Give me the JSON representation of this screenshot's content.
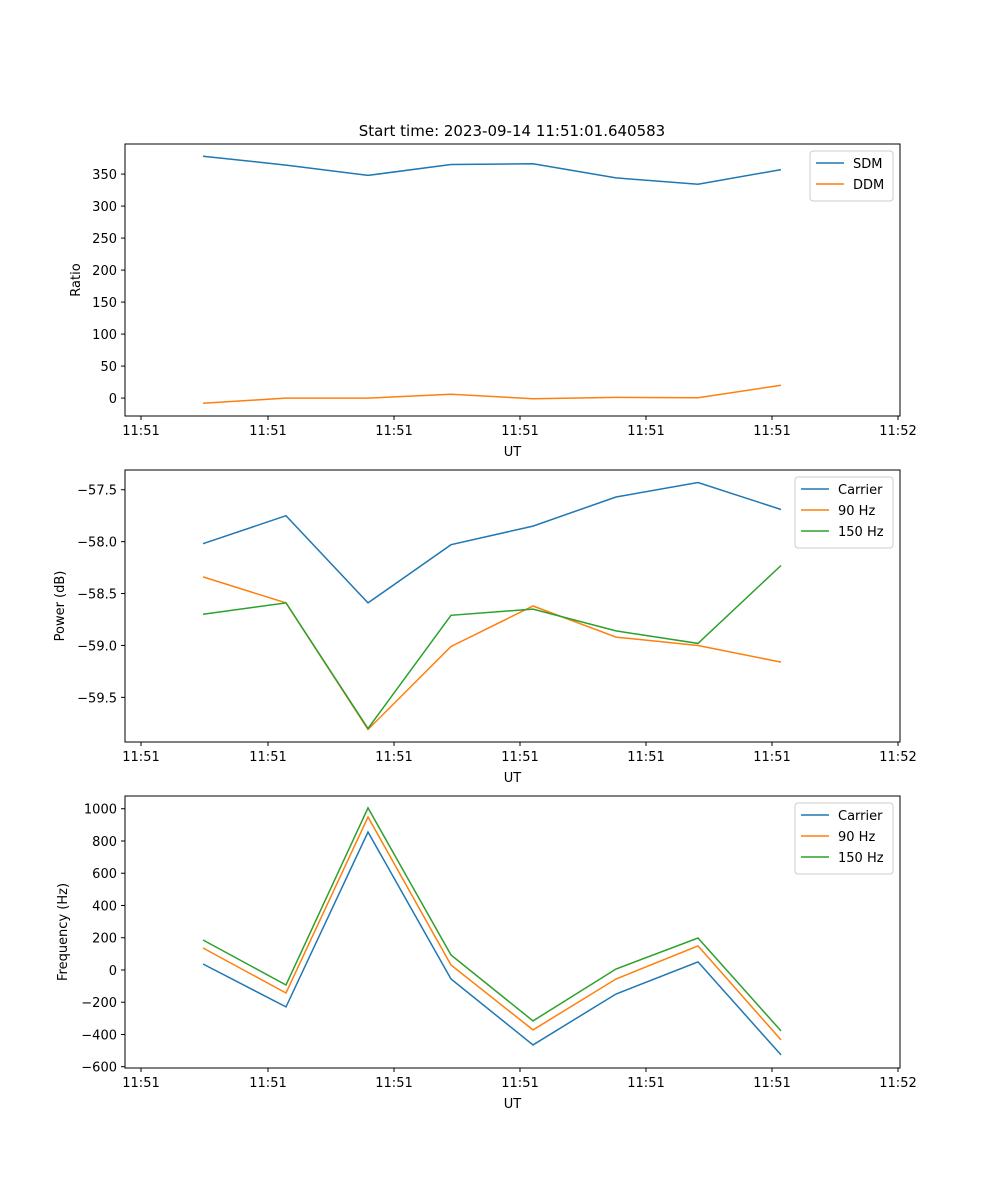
{
  "title": "Start time: 2023-09-14 11:51:01.640583",
  "colors": {
    "blue": "#1f77b4",
    "orange": "#ff7f0e",
    "green": "#2ca02c"
  },
  "chart_data": [
    {
      "type": "line",
      "xlabel": "UT",
      "ylabel": "Ratio",
      "xticks": [
        "11:51",
        "11:51",
        "11:51",
        "11:51",
        "11:51",
        "11:51",
        "11:52"
      ],
      "yticks": [
        0,
        50,
        100,
        150,
        200,
        250,
        300,
        350
      ],
      "ylim": [
        -28,
        397
      ],
      "legend": "top-right",
      "series": [
        {
          "name": "SDM",
          "color": "#1f77b4",
          "values": [
            378,
            364,
            348,
            365,
            366,
            344,
            334,
            357
          ]
        },
        {
          "name": "DDM",
          "color": "#ff7f0e",
          "values": [
            -8,
            0,
            0,
            6,
            -1,
            1,
            0.5,
            20
          ]
        }
      ]
    },
    {
      "type": "line",
      "xlabel": "UT",
      "ylabel": "Power (dB)",
      "xticks": [
        "11:51",
        "11:51",
        "11:51",
        "11:51",
        "11:51",
        "11:51",
        "11:52"
      ],
      "yticks": [
        -59.5,
        -59.0,
        -58.5,
        -58.0,
        -57.5
      ],
      "ytick_labels": [
        "−59.5",
        "−59.0",
        "−58.5",
        "−58.0",
        "−57.5"
      ],
      "ylim": [
        -59.93,
        -57.31
      ],
      "legend": "top-right",
      "series": [
        {
          "name": "Carrier",
          "color": "#1f77b4",
          "values": [
            -58.02,
            -57.75,
            -58.59,
            -58.03,
            -57.85,
            -57.57,
            -57.43,
            -57.69
          ]
        },
        {
          "name": "90 Hz",
          "color": "#ff7f0e",
          "values": [
            -58.34,
            -58.59,
            -59.81,
            -59.01,
            -58.62,
            -58.92,
            -59.0,
            -59.16
          ]
        },
        {
          "name": "150 Hz",
          "color": "#2ca02c",
          "values": [
            -58.7,
            -58.59,
            -59.8,
            -58.71,
            -58.65,
            -58.86,
            -58.98,
            -58.23
          ]
        }
      ]
    },
    {
      "type": "line",
      "xlabel": "UT",
      "ylabel": "Frequency (Hz)",
      "xticks": [
        "11:51",
        "11:51",
        "11:51",
        "11:51",
        "11:51",
        "11:51",
        "11:52"
      ],
      "yticks": [
        -600,
        -400,
        -200,
        0,
        200,
        400,
        600,
        800,
        1000
      ],
      "ytick_labels": [
        "−600",
        "−400",
        "−200",
        "0",
        "200",
        "400",
        "600",
        "800",
        "1000"
      ],
      "ylim": [
        -608,
        1079
      ],
      "legend": "top-right",
      "series": [
        {
          "name": "Carrier",
          "color": "#1f77b4",
          "values": [
            37,
            -229,
            856,
            -56,
            -465,
            -149,
            50,
            -527
          ]
        },
        {
          "name": "90 Hz",
          "color": "#ff7f0e",
          "values": [
            136,
            -143,
            949,
            31,
            -372,
            -56,
            149,
            -434
          ]
        },
        {
          "name": "150 Hz",
          "color": "#2ca02c",
          "values": [
            186,
            -93,
            1005,
            93,
            -316,
            6,
            198,
            -378
          ]
        }
      ]
    }
  ]
}
